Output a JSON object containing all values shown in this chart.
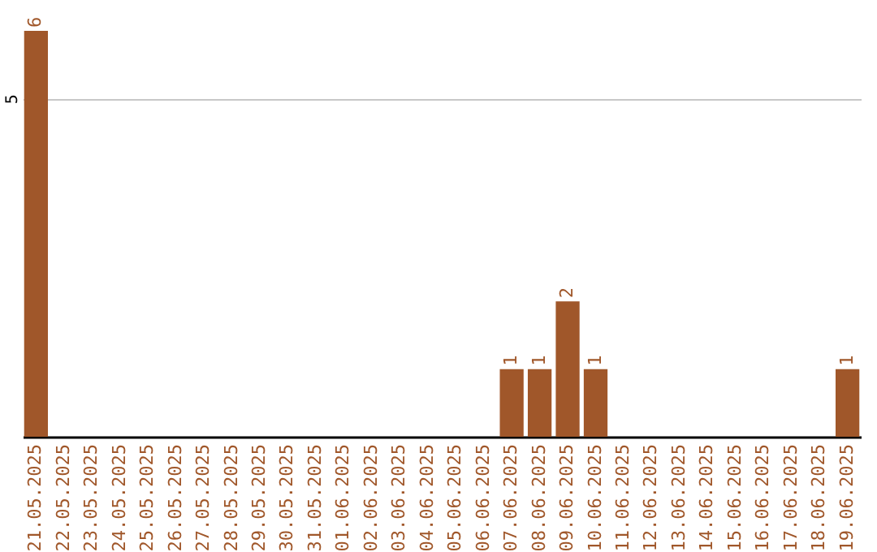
{
  "chart_data": {
    "type": "bar",
    "categories": [
      "21.05.2025",
      "22.05.2025",
      "23.05.2025",
      "24.05.2025",
      "25.05.2025",
      "26.05.2025",
      "27.05.2025",
      "28.05.2025",
      "29.05.2025",
      "30.05.2025",
      "31.05.2025",
      "01.06.2025",
      "02.06.2025",
      "03.06.2025",
      "04.06.2025",
      "05.06.2025",
      "06.06.2025",
      "07.06.2025",
      "08.06.2025",
      "09.06.2025",
      "10.06.2025",
      "11.06.2025",
      "12.06.2025",
      "13.06.2025",
      "14.06.2025",
      "15.06.2025",
      "16.06.2025",
      "17.06.2025",
      "18.06.2025",
      "19.06.2025"
    ],
    "values": [
      6,
      0,
      0,
      0,
      0,
      0,
      0,
      0,
      0,
      0,
      0,
      0,
      0,
      0,
      0,
      0,
      0,
      1,
      1,
      2,
      1,
      0,
      0,
      0,
      0,
      0,
      0,
      0,
      0,
      1
    ],
    "value_labels": [
      "6",
      null,
      null,
      null,
      null,
      null,
      null,
      null,
      null,
      null,
      null,
      null,
      null,
      null,
      null,
      null,
      null,
      "1",
      "1",
      "2",
      "1",
      null,
      null,
      null,
      null,
      null,
      null,
      null,
      null,
      "1"
    ],
    "color": "#a0572a",
    "ylim": [
      0,
      6
    ],
    "yticks": [
      5
    ],
    "grid": "y"
  }
}
